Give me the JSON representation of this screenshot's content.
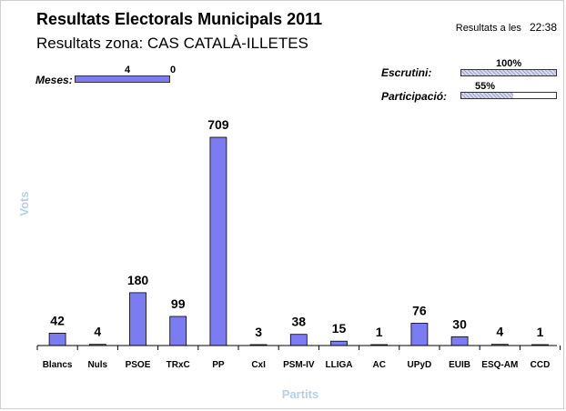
{
  "header": {
    "title": "Resultats Electorals Municipals 2011",
    "subtitle": "Resultats zona: CAS CATALÀ-ILLETES",
    "time_label": "Resultats a les",
    "time_value": "22:38"
  },
  "meses": {
    "label": "Meses:",
    "counted": "4",
    "pending": "0",
    "fraction": 1.0
  },
  "escrutini": {
    "label": "Escrutini:",
    "percent_label": "100%",
    "fraction": 1.0
  },
  "participacio": {
    "label": "Participació:",
    "percent_label": "55%",
    "fraction": 0.55
  },
  "colors": {
    "bar": "#7b7bf2",
    "axis_title": "#b4cfe6"
  },
  "chart_data": {
    "type": "bar",
    "title": "",
    "xlabel": "Partits",
    "ylabel": "Vots",
    "categories": [
      "Blancs",
      "Nuls",
      "PSOE",
      "TRxC",
      "PP",
      "CxI",
      "PSM-IV",
      "LLIGA",
      "AC",
      "UPyD",
      "EUIB",
      "ESQ-AM",
      "CCD"
    ],
    "values": [
      42,
      4,
      180,
      99,
      709,
      3,
      38,
      15,
      1,
      76,
      30,
      4,
      1
    ],
    "ylim": [
      0,
      709
    ],
    "grid": false,
    "legend": "none"
  }
}
